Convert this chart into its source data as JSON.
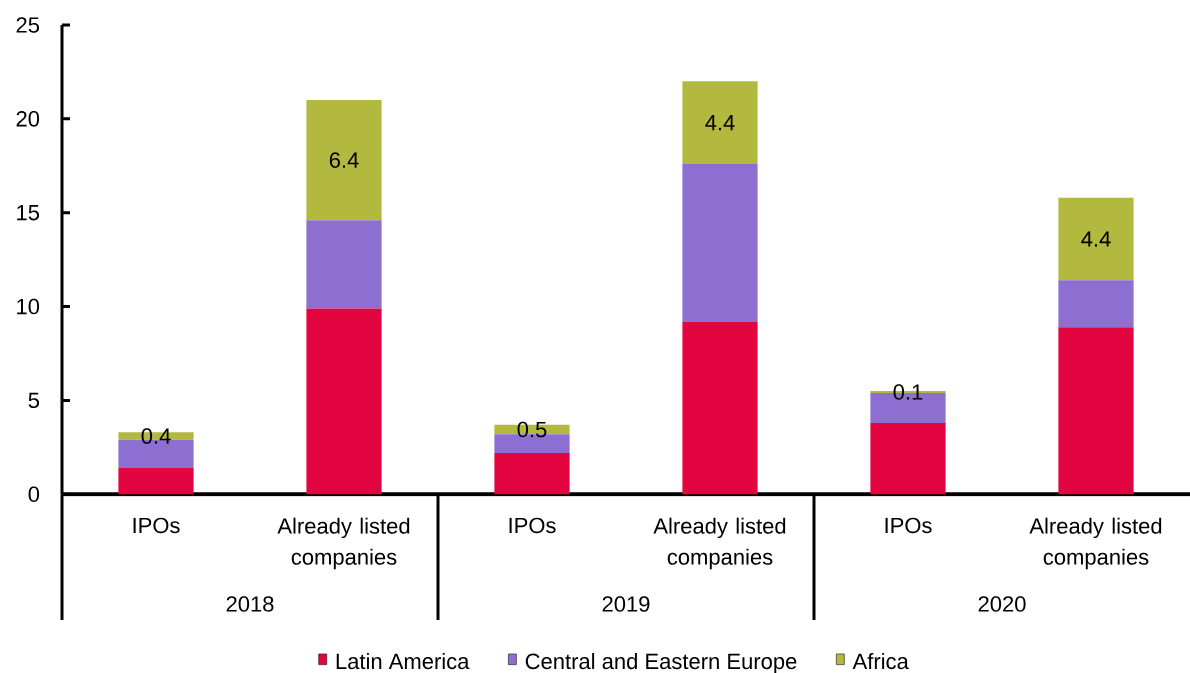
{
  "chart_data": {
    "type": "bar",
    "stacked": true,
    "categories": [
      "IPOs",
      "Already listed companies",
      "IPOs",
      "Already listed companies",
      "IPOs",
      "Already listed companies"
    ],
    "series": [
      {
        "name": "Latin America",
        "color": "#e3053f",
        "values": [
          1.4,
          9.9,
          2.2,
          9.2,
          3.8,
          8.9
        ]
      },
      {
        "name": "Central and Eastern Europe",
        "color": "#8c6fd1",
        "values": [
          1.5,
          4.7,
          1.0,
          8.4,
          1.6,
          2.5
        ]
      },
      {
        "name": "Africa",
        "color": "#b2b93e",
        "values": [
          0.4,
          6.4,
          0.5,
          4.4,
          0.1,
          4.4
        ],
        "value_labels": [
          "0.4",
          "6.4",
          "0.5",
          "4.4",
          "0.1",
          "4.4"
        ]
      }
    ],
    "ylim": [
      0,
      25
    ],
    "yticks": [
      0,
      5,
      10,
      15,
      20,
      25
    ],
    "legend": "bottom",
    "annotations": [
      "2018",
      "2019",
      "2020"
    ]
  }
}
